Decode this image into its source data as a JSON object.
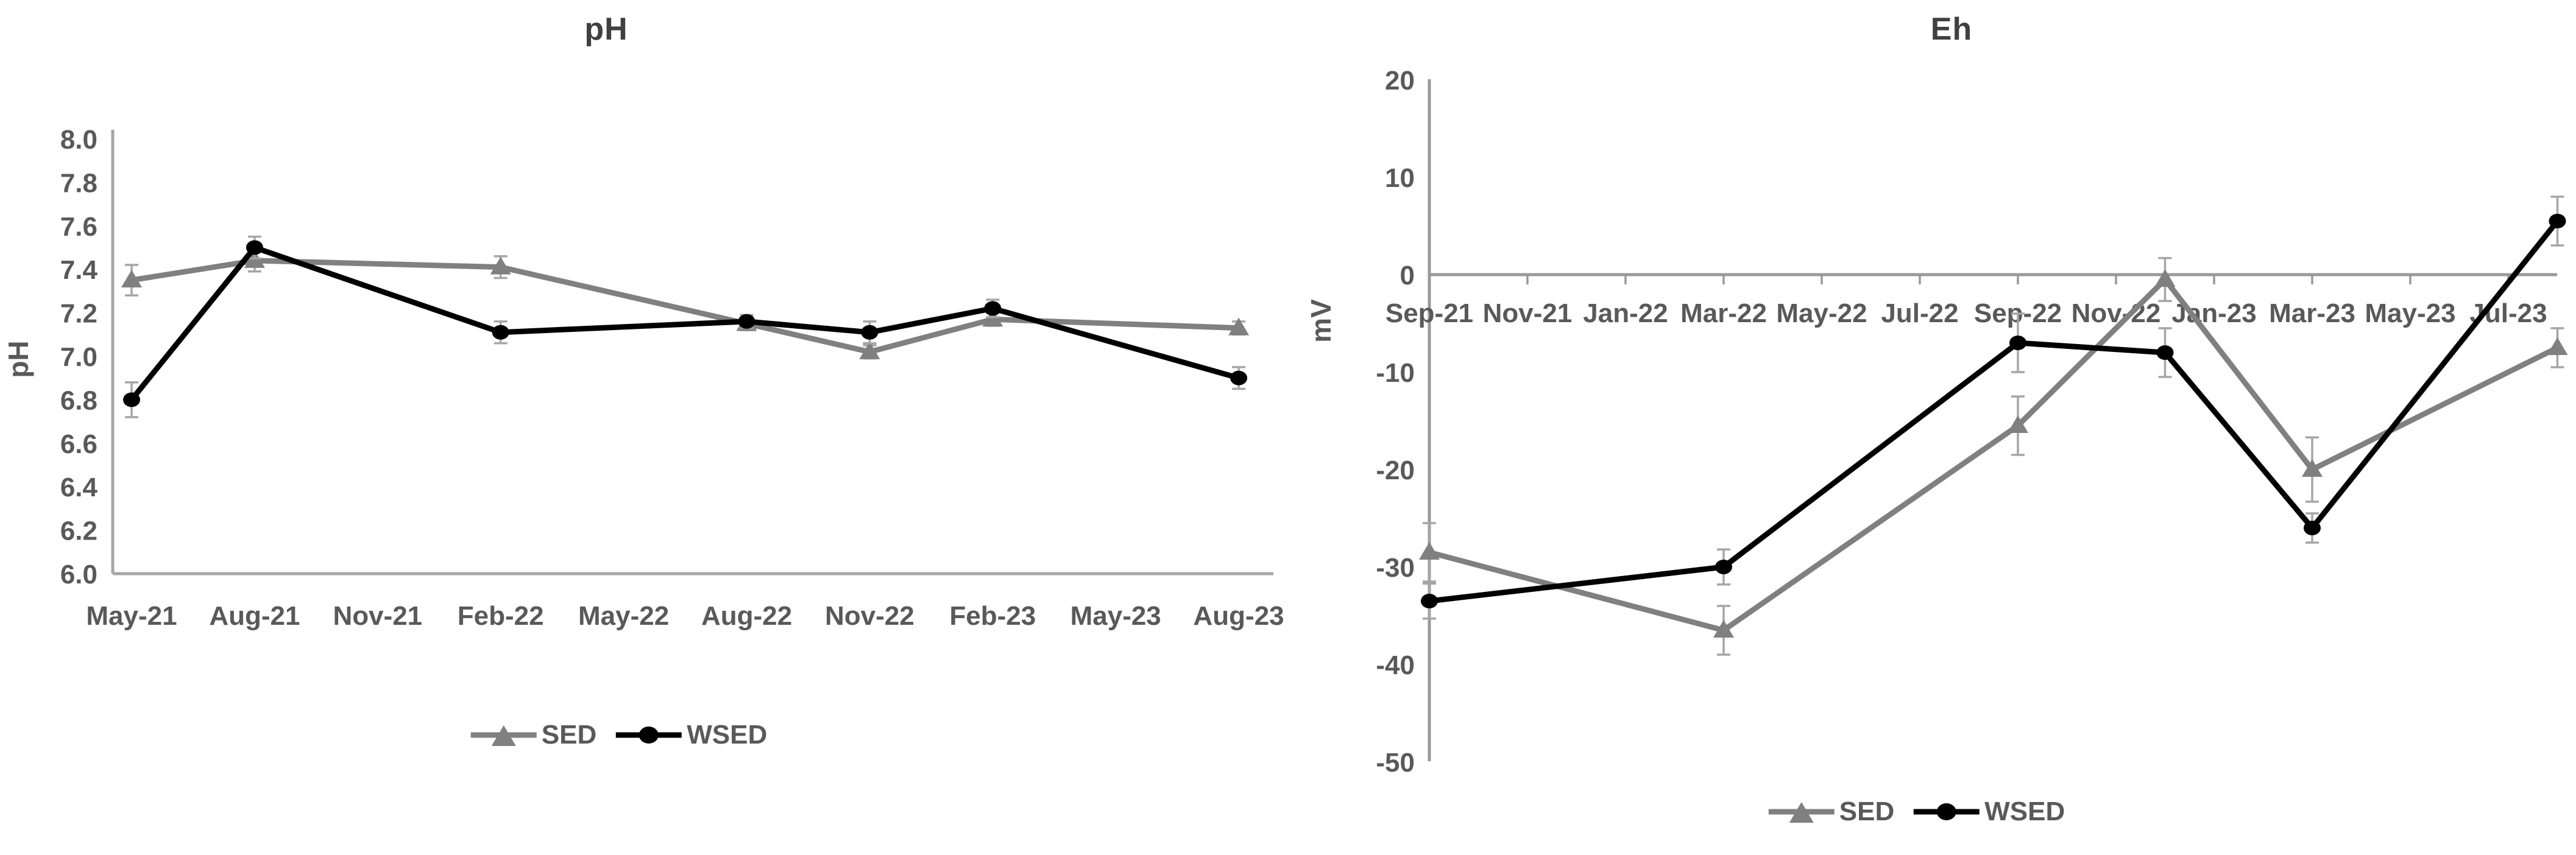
{
  "page": {
    "background": "#ffffff",
    "text_color": "#595959",
    "title_color": "#404040"
  },
  "chart_data": [
    {
      "id": "ph",
      "type": "line",
      "title": "pH",
      "ylabel": "pH",
      "xlabel": "",
      "ylim": [
        6.0,
        8.0
      ],
      "grid": false,
      "legend_position": "bottom",
      "axis_color": "#a6a6a6",
      "error_bar_color": "#a6a6a6",
      "x_tick_labels": [
        "May-21",
        "Aug-21",
        "Nov-21",
        "Feb-22",
        "May-22",
        "Aug-22",
        "Nov-22",
        "Feb-23",
        "May-23",
        "Aug-23"
      ],
      "x_tick_months": [
        0,
        3,
        6,
        9,
        12,
        15,
        18,
        21,
        24,
        27
      ],
      "y_tick_labels": [
        "8.0",
        "7.8",
        "7.6",
        "7.4",
        "7.2",
        "7.0",
        "6.8",
        "6.6",
        "6.4",
        "6.2",
        "6.0"
      ],
      "y_tick_values": [
        8.0,
        7.8,
        7.6,
        7.4,
        7.2,
        7.0,
        6.8,
        6.6,
        6.4,
        6.2,
        6.0
      ],
      "series": [
        {
          "name": "SED",
          "color": "#808080",
          "marker": "triangle",
          "dates": [
            "May-21",
            "Aug-21",
            "Feb-22",
            "Aug-22",
            "Nov-22",
            "Feb-23",
            "Aug-23"
          ],
          "x_months": [
            0,
            3,
            9,
            15,
            18,
            21,
            27
          ],
          "values": [
            7.35,
            7.44,
            7.41,
            7.15,
            7.02,
            7.17,
            7.13
          ],
          "errors": [
            0.07,
            0.05,
            0.05,
            0.03,
            0.03,
            0.03,
            0.03
          ]
        },
        {
          "name": "WSED",
          "color": "#000000",
          "marker": "circle",
          "dates": [
            "May-21",
            "Aug-21",
            "Feb-22",
            "Aug-22",
            "Nov-22",
            "Feb-23",
            "Aug-23"
          ],
          "x_months": [
            0,
            3,
            9,
            15,
            18,
            21,
            27
          ],
          "values": [
            6.8,
            7.5,
            7.11,
            7.16,
            7.11,
            7.22,
            6.9
          ],
          "errors": [
            0.08,
            0.05,
            0.05,
            0.03,
            0.05,
            0.04,
            0.05
          ]
        }
      ]
    },
    {
      "id": "eh",
      "type": "line",
      "title": "Eh",
      "ylabel": "mV",
      "xlabel": "",
      "ylim": [
        -50,
        20
      ],
      "grid": false,
      "legend_position": "bottom",
      "axis_color": "#999999",
      "error_bar_color": "#a6a6a6",
      "x_tick_labels": [
        "Sep-21",
        "Nov-21",
        "Jan-22",
        "Mar-22",
        "May-22",
        "Jul-22",
        "Sep-22",
        "Nov-22",
        "Jan-23",
        "Mar-23",
        "May-23",
        "Jul-23"
      ],
      "x_tick_months": [
        0,
        2,
        4,
        6,
        8,
        10,
        12,
        14,
        16,
        18,
        20,
        22
      ],
      "y_tick_labels": [
        "20",
        "10",
        "0",
        "-10",
        "-20",
        "-30",
        "-40",
        "-50"
      ],
      "y_tick_values": [
        20,
        10,
        0,
        -10,
        -20,
        -30,
        -40,
        -50
      ],
      "series": [
        {
          "name": "SED",
          "color": "#808080",
          "marker": "triangle",
          "dates": [
            "Sep-21",
            "Mar-22",
            "Sep-22",
            "Dec-22",
            "Mar-23",
            "Aug-23"
          ],
          "x_months": [
            0,
            6,
            12,
            15,
            18,
            23
          ],
          "values": [
            -28.5,
            -36.5,
            -15.5,
            -0.5,
            -20,
            -7.5
          ],
          "errors": [
            3,
            2.5,
            3,
            2.2,
            3.3,
            2
          ]
        },
        {
          "name": "WSED",
          "color": "#000000",
          "marker": "circle",
          "dates": [
            "Sep-21",
            "Mar-22",
            "Sep-22",
            "Dec-22",
            "Mar-23",
            "Aug-23"
          ],
          "x_months": [
            0,
            6,
            12,
            15,
            18,
            23
          ],
          "values": [
            -33.5,
            -30,
            -7,
            -8,
            -26,
            5.5
          ],
          "errors": [
            1.8,
            1.8,
            3,
            2.5,
            1.5,
            2.5
          ]
        }
      ]
    }
  ]
}
